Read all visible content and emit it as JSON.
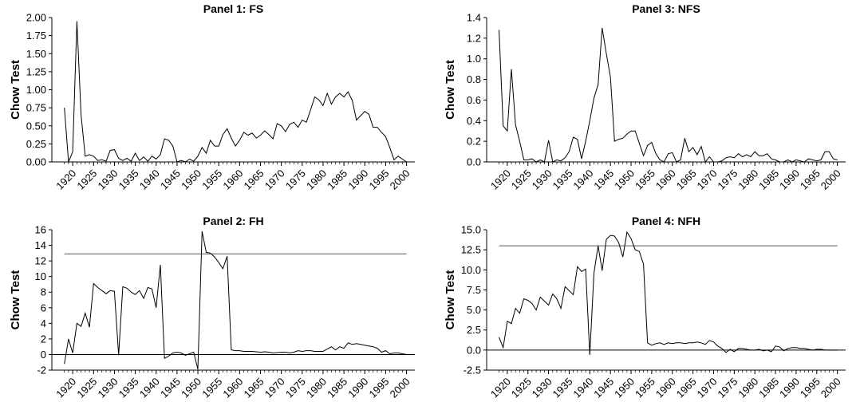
{
  "chart_data": [
    {
      "type": "line",
      "title": "Panel 1: FS",
      "ylabel": "Chow Test",
      "xlabel": "",
      "ylim": [
        0,
        2.0
      ],
      "yticks": [
        "0.00",
        "0.25",
        "0.50",
        "0.75",
        "1.00",
        "1.25",
        "1.50",
        "1.75",
        "2.00"
      ],
      "xticks": [
        "1920",
        "1925",
        "1930",
        "1935",
        "1940",
        "1945",
        "1950",
        "1955",
        "1960",
        "1965",
        "1970",
        "1975",
        "1980",
        "1985",
        "1990",
        "1995",
        "2000"
      ],
      "x": [
        1918,
        1919,
        1920,
        1921,
        1922,
        1923,
        1924,
        1925,
        1926,
        1927,
        1928,
        1929,
        1930,
        1931,
        1932,
        1933,
        1934,
        1935,
        1936,
        1937,
        1938,
        1939,
        1940,
        1941,
        1942,
        1943,
        1944,
        1945,
        1946,
        1947,
        1948,
        1949,
        1950,
        1951,
        1952,
        1953,
        1954,
        1955,
        1956,
        1957,
        1958,
        1959,
        1960,
        1961,
        1962,
        1963,
        1964,
        1965,
        1966,
        1967,
        1968,
        1969,
        1970,
        1971,
        1972,
        1973,
        1974,
        1975,
        1976,
        1977,
        1978,
        1979,
        1980,
        1981,
        1982,
        1983,
        1984,
        1985,
        1986,
        1987,
        1988,
        1989,
        1990,
        1991,
        1992,
        1993,
        1994,
        1995,
        1996,
        1997,
        1998,
        1999,
        2000
      ],
      "series": [
        {
          "values": [
            0.75,
            0.0,
            0.14,
            1.95,
            0.65,
            0.08,
            0.1,
            0.08,
            0.02,
            0.03,
            0.01,
            0.16,
            0.17,
            0.05,
            0.02,
            0.05,
            0.01,
            0.12,
            0.02,
            0.07,
            0.01,
            0.08,
            0.04,
            0.1,
            0.32,
            0.3,
            0.22,
            0.0,
            0.02,
            0.0,
            0.04,
            0.01,
            0.08,
            0.2,
            0.12,
            0.3,
            0.22,
            0.22,
            0.38,
            0.46,
            0.33,
            0.22,
            0.3,
            0.41,
            0.37,
            0.4,
            0.33,
            0.37,
            0.43,
            0.38,
            0.32,
            0.53,
            0.5,
            0.42,
            0.52,
            0.55,
            0.48,
            0.58,
            0.55,
            0.72,
            0.9,
            0.86,
            0.78,
            0.95,
            0.8,
            0.9,
            0.95,
            0.9,
            0.97,
            0.85,
            0.58,
            0.64,
            0.7,
            0.66,
            0.48,
            0.48,
            0.41,
            0.35,
            0.2,
            0.03,
            0.08,
            0.04,
            0.0
          ]
        }
      ]
    },
    {
      "type": "line",
      "title": "Panel 3: NFS",
      "ylabel": "Chow Test",
      "xlabel": "",
      "ylim": [
        0,
        1.4
      ],
      "yticks": [
        "0.0",
        "0.2",
        "0.4",
        "0.6",
        "0.8",
        "1.0",
        "1.2",
        "1.4"
      ],
      "xticks": [
        "1920",
        "1925",
        "1930",
        "1935",
        "1940",
        "1945",
        "1950",
        "1955",
        "1960",
        "1965",
        "1970",
        "1975",
        "1980",
        "1985",
        "1990",
        "1995",
        "2000"
      ],
      "x": [
        1918,
        1919,
        1920,
        1921,
        1922,
        1923,
        1924,
        1925,
        1926,
        1927,
        1928,
        1929,
        1930,
        1931,
        1932,
        1933,
        1934,
        1935,
        1936,
        1937,
        1938,
        1939,
        1940,
        1941,
        1942,
        1943,
        1944,
        1945,
        1946,
        1947,
        1948,
        1949,
        1950,
        1951,
        1952,
        1953,
        1954,
        1955,
        1956,
        1957,
        1958,
        1959,
        1960,
        1961,
        1962,
        1963,
        1964,
        1965,
        1966,
        1967,
        1968,
        1969,
        1970,
        1971,
        1972,
        1973,
        1974,
        1975,
        1976,
        1977,
        1978,
        1979,
        1980,
        1981,
        1982,
        1983,
        1984,
        1985,
        1986,
        1987,
        1988,
        1989,
        1990,
        1991,
        1992,
        1993,
        1994,
        1995,
        1996,
        1997,
        1998,
        1999,
        2000
      ],
      "series": [
        {
          "values": [
            1.28,
            0.35,
            0.3,
            0.9,
            0.36,
            0.2,
            0.02,
            0.02,
            0.03,
            0.0,
            0.02,
            0.0,
            0.21,
            0.0,
            0.02,
            0.01,
            0.04,
            0.1,
            0.24,
            0.22,
            0.03,
            0.2,
            0.4,
            0.62,
            0.75,
            1.3,
            1.05,
            0.82,
            0.2,
            0.22,
            0.23,
            0.27,
            0.3,
            0.3,
            0.18,
            0.06,
            0.16,
            0.19,
            0.08,
            0.02,
            0.0,
            0.08,
            0.09,
            0.0,
            0.02,
            0.23,
            0.1,
            0.14,
            0.07,
            0.15,
            0.0,
            0.05,
            0.0,
            0.0,
            0.01,
            0.04,
            0.05,
            0.04,
            0.08,
            0.05,
            0.07,
            0.05,
            0.1,
            0.06,
            0.06,
            0.08,
            0.03,
            0.02,
            0.0,
            0.0,
            0.02,
            0.0,
            0.02,
            0.01,
            0.0,
            0.03,
            0.02,
            0.01,
            0.02,
            0.1,
            0.1,
            0.03,
            0.02
          ]
        }
      ]
    },
    {
      "type": "line",
      "title": "Panel 2: FH",
      "ylabel": "Chow Test",
      "xlabel": "",
      "ylim": [
        -2,
        16
      ],
      "yticks": [
        "-2",
        "0",
        "2",
        "4",
        "6",
        "8",
        "10",
        "12",
        "14",
        "16"
      ],
      "xticks": [
        "1920",
        "1925",
        "1930",
        "1935",
        "1940",
        "1945",
        "1950",
        "1955",
        "1960",
        "1965",
        "1970",
        "1975",
        "1980",
        "1985",
        "1990",
        "1995",
        "2000"
      ],
      "critical_value": 12.9,
      "x": [
        1918,
        1919,
        1920,
        1921,
        1922,
        1923,
        1924,
        1925,
        1926,
        1927,
        1928,
        1929,
        1930,
        1931,
        1932,
        1933,
        1934,
        1935,
        1936,
        1937,
        1938,
        1939,
        1940,
        1941,
        1942,
        1943,
        1944,
        1945,
        1946,
        1947,
        1948,
        1949,
        1950,
        1951,
        1952,
        1953,
        1954,
        1955,
        1956,
        1957,
        1958,
        1959,
        1960,
        1961,
        1962,
        1963,
        1964,
        1965,
        1966,
        1967,
        1968,
        1969,
        1970,
        1971,
        1972,
        1973,
        1974,
        1975,
        1976,
        1977,
        1978,
        1979,
        1980,
        1981,
        1982,
        1983,
        1984,
        1985,
        1986,
        1987,
        1988,
        1989,
        1990,
        1991,
        1992,
        1993,
        1994,
        1995,
        1996,
        1997,
        1998,
        1999,
        2000
      ],
      "series": [
        {
          "values": [
            -1.2,
            2.0,
            0.2,
            4.0,
            3.6,
            5.3,
            3.5,
            9.1,
            8.6,
            8.2,
            7.8,
            8.2,
            8.1,
            -0.1,
            8.7,
            8.5,
            8.0,
            7.7,
            8.2,
            7.2,
            8.6,
            8.4,
            6.0,
            11.5,
            -0.5,
            -0.2,
            0.2,
            0.3,
            0.2,
            -0.1,
            0.1,
            0.3,
            -1.9,
            15.8,
            13.1,
            13.0,
            12.5,
            11.8,
            11.0,
            12.6,
            0.6,
            0.5,
            0.5,
            0.4,
            0.4,
            0.4,
            0.35,
            0.3,
            0.35,
            0.3,
            0.2,
            0.25,
            0.3,
            0.3,
            0.2,
            0.3,
            0.5,
            0.4,
            0.5,
            0.5,
            0.4,
            0.4,
            0.4,
            0.7,
            1.0,
            0.6,
            1.0,
            0.8,
            1.5,
            1.3,
            1.4,
            1.3,
            1.2,
            1.1,
            1.0,
            0.8,
            0.3,
            0.5,
            0.1,
            0.2,
            0.2,
            0.1,
            0.0
          ]
        }
      ]
    },
    {
      "type": "line",
      "title": "Panel 4: NFH",
      "ylabel": "Chow Test",
      "xlabel": "",
      "ylim": [
        -2.5,
        15.0
      ],
      "yticks": [
        "-2.5",
        "0.0",
        "2.5",
        "5.0",
        "7.5",
        "10.0",
        "12.5",
        "15.0"
      ],
      "xticks": [
        "1920",
        "1925",
        "1930",
        "1935",
        "1940",
        "1945",
        "1950",
        "1955",
        "1960",
        "1965",
        "1970",
        "1975",
        "1980",
        "1985",
        "1990",
        "1995",
        "2000"
      ],
      "critical_value": 13.0,
      "x": [
        1918,
        1919,
        1920,
        1921,
        1922,
        1923,
        1924,
        1925,
        1926,
        1927,
        1928,
        1929,
        1930,
        1931,
        1932,
        1933,
        1934,
        1935,
        1936,
        1937,
        1938,
        1939,
        1940,
        1941,
        1942,
        1943,
        1944,
        1945,
        1946,
        1947,
        1948,
        1949,
        1950,
        1951,
        1952,
        1953,
        1954,
        1955,
        1956,
        1957,
        1958,
        1959,
        1960,
        1961,
        1962,
        1963,
        1964,
        1965,
        1966,
        1967,
        1968,
        1969,
        1970,
        1971,
        1972,
        1973,
        1974,
        1975,
        1976,
        1977,
        1978,
        1979,
        1980,
        1981,
        1982,
        1983,
        1984,
        1985,
        1986,
        1987,
        1988,
        1989,
        1990,
        1991,
        1992,
        1993,
        1994,
        1995,
        1996,
        1997,
        1998,
        1999,
        2000
      ],
      "series": [
        {
          "values": [
            1.6,
            0.3,
            3.6,
            3.3,
            5.2,
            4.6,
            6.4,
            6.2,
            5.8,
            5.0,
            6.6,
            6.1,
            5.6,
            7.0,
            6.4,
            5.2,
            7.9,
            7.4,
            6.9,
            10.4,
            9.8,
            10.1,
            -0.6,
            9.6,
            13.0,
            9.9,
            13.8,
            14.3,
            14.2,
            13.4,
            11.6,
            14.7,
            13.9,
            12.5,
            12.3,
            10.7,
            0.9,
            0.6,
            0.8,
            0.9,
            0.7,
            0.9,
            0.8,
            0.9,
            0.9,
            0.8,
            0.9,
            0.9,
            1.0,
            0.9,
            0.7,
            1.2,
            1.0,
            0.5,
            0.2,
            -0.3,
            0.1,
            -0.2,
            0.2,
            0.2,
            0.1,
            0.0,
            0.0,
            0.1,
            -0.1,
            0.0,
            -0.2,
            0.5,
            0.4,
            -0.1,
            0.2,
            0.3,
            0.3,
            0.2,
            0.2,
            0.1,
            0.0,
            0.1,
            0.1,
            0.0,
            0.0,
            0.0,
            0.0
          ]
        }
      ]
    }
  ]
}
